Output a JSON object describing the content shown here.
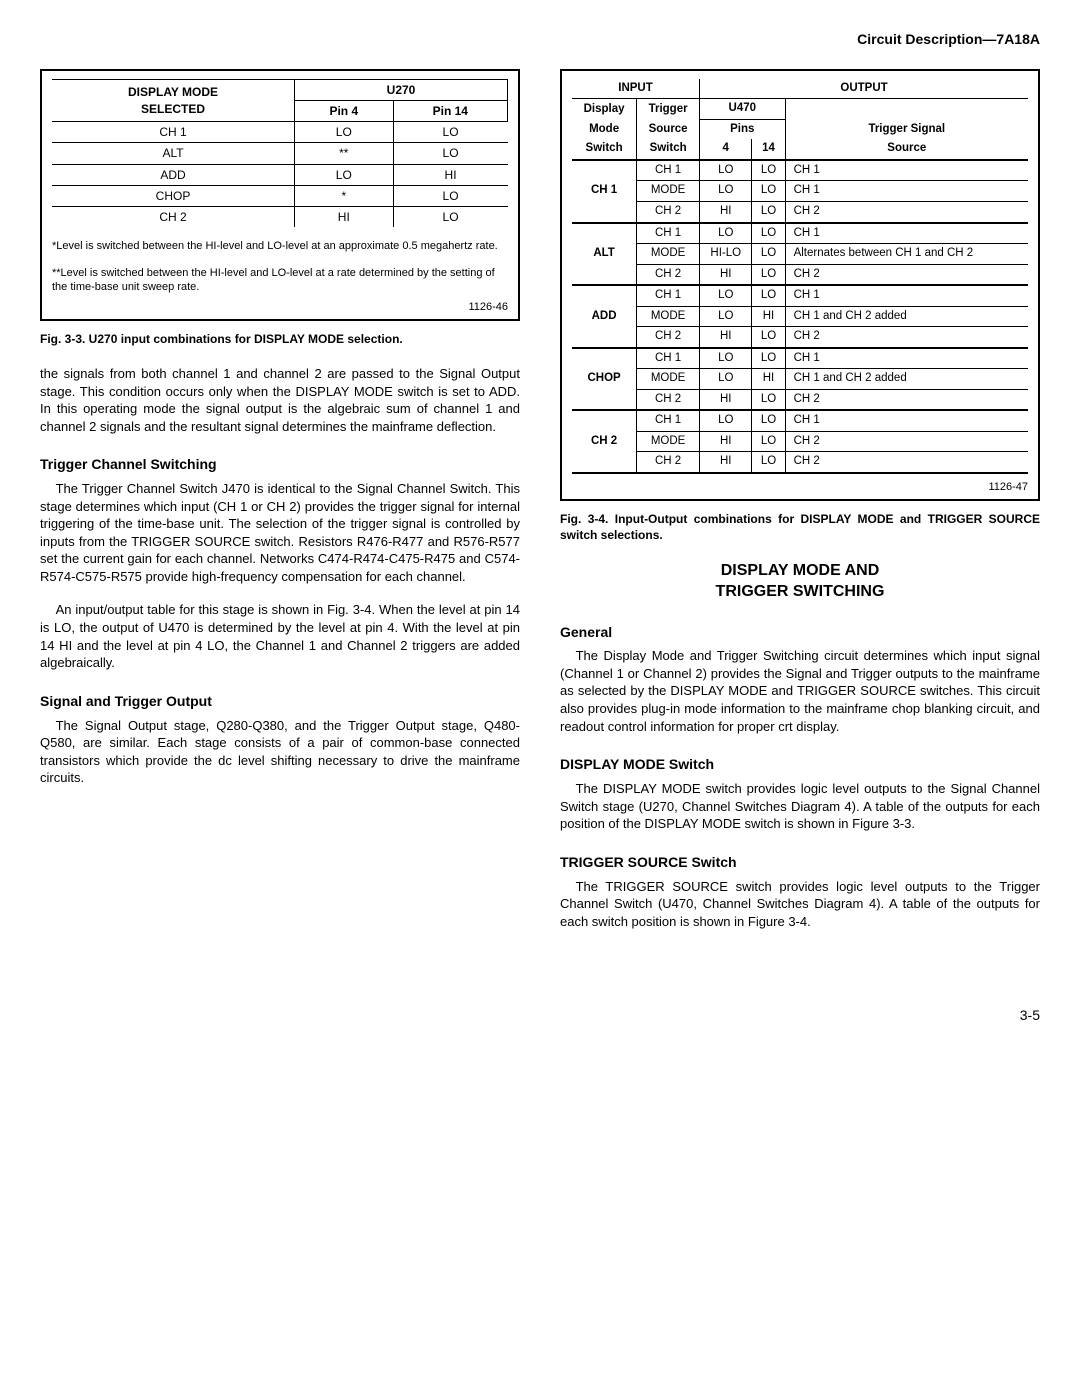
{
  "header": "Circuit Description—7A18A",
  "table1": {
    "col_headers": {
      "c1a": "DISPLAY MODE",
      "c1b": "SELECTED",
      "c2": "U270",
      "c2a": "Pin 4",
      "c2b": "Pin 14"
    },
    "rows": [
      {
        "mode": "CH 1",
        "p4": "LO",
        "p14": "LO"
      },
      {
        "mode": "ALT",
        "p4": "**",
        "p14": "LO"
      },
      {
        "mode": "ADD",
        "p4": "LO",
        "p14": "HI"
      },
      {
        "mode": "CHOP",
        "p4": "*",
        "p14": "LO"
      },
      {
        "mode": "CH 2",
        "p4": "HI",
        "p14": "LO"
      }
    ],
    "foot1": "*Level is switched between the HI-level and LO-level at an approximate 0.5 megahertz rate.",
    "foot2": "**Level is switched between the HI-level and LO-level at a rate determined by the setting of the time-base unit sweep rate.",
    "figno": "1126-46",
    "caption": "Fig. 3-3. U270 input combinations for DISPLAY MODE selection."
  },
  "left_text": {
    "p1": "the signals from both channel 1 and channel 2 are passed to the Signal Output stage. This condition occurs only when the DISPLAY MODE switch is set to ADD. In this operating mode the signal output is the algebraic sum of channel 1 and channel 2 signals and the resultant signal determines the mainframe deflection.",
    "h_tcs": "Trigger Channel Switching",
    "p2": "The Trigger Channel Switch J470 is identical to the Signal Channel Switch. This stage determines which input (CH 1 or CH 2) provides the trigger signal for internal triggering of the time-base unit. The selection of the trigger signal is controlled by inputs from the TRIGGER SOURCE switch. Resistors R476-R477 and R576-R577 set the current gain for each channel. Networks C474-R474-C475-R475 and C574-R574-C575-R575 provide high-frequency compensation for each channel.",
    "p3": "An input/output table for this stage is shown in Fig. 3-4. When the level at pin 14 is LO, the output of U470 is determined by the level at pin 4. With the level at pin 14 HI and the level at pin 4 LO, the Channel 1 and Channel 2 triggers are added algebraically.",
    "h_sto": "Signal and Trigger Output",
    "p4": "The Signal Output stage, Q280-Q380, and the Trigger Output stage, Q480-Q580, are similar. Each stage consists of a pair of common-base connected transistors which provide the dc level shifting necessary to drive the mainframe circuits."
  },
  "table2": {
    "hdr": {
      "input": "INPUT",
      "output": "OUTPUT",
      "dms": "Display",
      "dms2": "Mode",
      "dms3": "Switch",
      "tss": "Trigger",
      "tss2": "Source",
      "tss3": "Switch",
      "u470": "U470",
      "pins": "Pins",
      "p4": "4",
      "p14": "14",
      "sig": "Trigger Signal",
      "sig2": "Source"
    },
    "groups": [
      {
        "mode": "CH 1",
        "rows": [
          {
            "ts": "CH 1",
            "p4": "LO",
            "p14": "LO",
            "out": "CH 1"
          },
          {
            "ts": "MODE",
            "p4": "LO",
            "p14": "LO",
            "out": "CH 1"
          },
          {
            "ts": "CH 2",
            "p4": "HI",
            "p14": "LO",
            "out": "CH 2"
          }
        ]
      },
      {
        "mode": "ALT",
        "rows": [
          {
            "ts": "CH 1",
            "p4": "LO",
            "p14": "LO",
            "out": "CH 1"
          },
          {
            "ts": "MODE",
            "p4": "HI-LO",
            "p14": "LO",
            "out": "Alternates between CH 1 and CH 2"
          },
          {
            "ts": "CH 2",
            "p4": "HI",
            "p14": "LO",
            "out": "CH 2"
          }
        ]
      },
      {
        "mode": "ADD",
        "rows": [
          {
            "ts": "CH 1",
            "p4": "LO",
            "p14": "LO",
            "out": "CH 1"
          },
          {
            "ts": "MODE",
            "p4": "LO",
            "p14": "HI",
            "out": "CH 1 and CH 2 added"
          },
          {
            "ts": "CH 2",
            "p4": "HI",
            "p14": "LO",
            "out": "CH 2"
          }
        ]
      },
      {
        "mode": "CHOP",
        "rows": [
          {
            "ts": "CH 1",
            "p4": "LO",
            "p14": "LO",
            "out": "CH 1"
          },
          {
            "ts": "MODE",
            "p4": "LO",
            "p14": "HI",
            "out": "CH 1 and CH 2 added"
          },
          {
            "ts": "CH 2",
            "p4": "HI",
            "p14": "LO",
            "out": "CH 2"
          }
        ]
      },
      {
        "mode": "CH 2",
        "rows": [
          {
            "ts": "CH 1",
            "p4": "LO",
            "p14": "LO",
            "out": "CH 1"
          },
          {
            "ts": "MODE",
            "p4": "HI",
            "p14": "LO",
            "out": "CH 2"
          },
          {
            "ts": "CH 2",
            "p4": "HI",
            "p14": "LO",
            "out": "CH 2"
          }
        ]
      }
    ],
    "figno": "1126-47",
    "caption": "Fig. 3-4. Input-Output combinations for DISPLAY MODE and TRIGGER SOURCE switch selections."
  },
  "right_text": {
    "sec_title1": "DISPLAY MODE AND",
    "sec_title2": "TRIGGER SWITCHING",
    "h_gen": "General",
    "p_gen": "The Display Mode and Trigger Switching circuit determines which input signal (Channel 1 or Channel 2) provides the Signal and Trigger outputs to the mainframe as selected by the DISPLAY MODE and TRIGGER SOURCE switches. This circuit also provides plug-in mode information to the mainframe chop blanking circuit, and readout control information for proper crt display.",
    "h_dms": "DISPLAY MODE Switch",
    "p_dms": "The DISPLAY MODE switch provides logic level outputs to the Signal Channel Switch stage (U270, Channel Switches Diagram 4). A table of the outputs for each position of the DISPLAY MODE switch is shown in Figure 3-3.",
    "h_tss": "TRIGGER SOURCE Switch",
    "p_tss": "The TRIGGER SOURCE switch provides logic level outputs to the Trigger Channel Switch (U470, Channel Switches Diagram 4). A table of the outputs for each switch position is shown in Figure 3-4."
  },
  "page_num": "3-5"
}
